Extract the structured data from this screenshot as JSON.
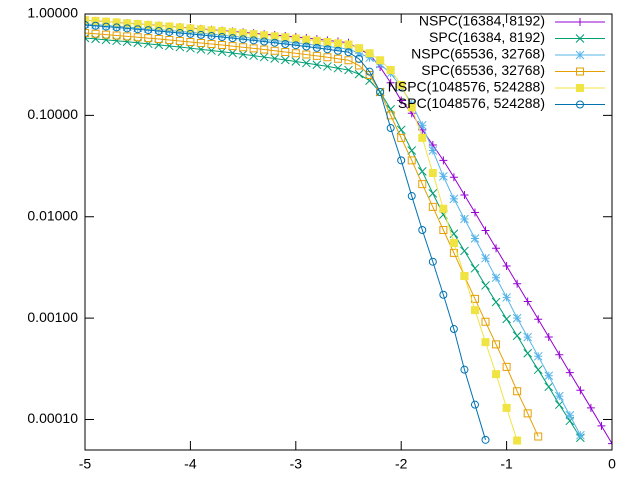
{
  "chart_data": {
    "type": "line",
    "log_y": true,
    "legend": "top-right",
    "x": [
      -5,
      -4.9,
      -4.8,
      -4.7,
      -4.6,
      -4.5,
      -4.4,
      -4.3,
      -4.2,
      -4.1,
      -4,
      -3.9,
      -3.8,
      -3.7,
      -3.6,
      -3.5,
      -3.4,
      -3.3,
      -3.2,
      -3.1,
      -3,
      -2.9,
      -2.8,
      -2.7,
      -2.6,
      -2.5,
      -2.4,
      -2.3,
      -2.2,
      -2.1,
      -2,
      -1.9,
      -1.8,
      -1.7,
      -1.6,
      -1.5,
      -1.4,
      -1.3,
      -1.2,
      -1.1,
      -1,
      -0.9,
      -0.8,
      -0.7,
      -0.6,
      -0.5,
      -0.4,
      -0.3,
      -0.2,
      -0.1,
      0
    ],
    "series": [
      {
        "name": "NSPC(16384, 8192)",
        "color": "#9400d3",
        "marker": "plus",
        "values": [
          0.87,
          0.855,
          0.84,
          0.826,
          0.812,
          0.798,
          0.784,
          0.77,
          0.756,
          0.742,
          0.728,
          0.714,
          0.7,
          0.686,
          0.672,
          0.658,
          0.645,
          0.632,
          0.62,
          0.607,
          0.595,
          0.58,
          0.565,
          0.55,
          0.535,
          0.52,
          0.45,
          0.4,
          0.3,
          0.21,
          0.14,
          0.105,
          0.072,
          0.051,
          0.036,
          0.0245,
          0.0164,
          0.011,
          0.00732,
          0.00489,
          0.00327,
          0.00218,
          0.00146,
          0.000974,
          0.000651,
          0.000435,
          0.00029,
          0.000194,
          0.00013,
          8.66e-05,
          5.78e-05
        ]
      },
      {
        "name": "SPC(16384, 8192)",
        "color": "#009e73",
        "marker": "cross",
        "values": [
          0.58,
          0.568,
          0.556,
          0.544,
          0.532,
          0.52,
          0.508,
          0.496,
          0.484,
          0.472,
          0.46,
          0.448,
          0.436,
          0.424,
          0.412,
          0.4,
          0.388,
          0.376,
          0.364,
          0.352,
          0.34,
          0.328,
          0.316,
          0.304,
          0.292,
          0.28,
          0.255,
          0.22,
          0.17,
          0.115,
          0.072,
          0.045,
          0.028,
          0.017,
          0.0105,
          0.0068,
          0.0046,
          0.0031,
          0.0021,
          0.00144,
          0.00098,
          0.00067,
          0.00045,
          0.00031,
          0.00021,
          0.00014,
          9.7e-05,
          6.6e-05,
          null,
          null,
          null
        ]
      },
      {
        "name": "NSPC(65536, 32768)",
        "color": "#56b4e9",
        "marker": "star",
        "values": [
          0.8,
          0.786,
          0.772,
          0.758,
          0.744,
          0.73,
          0.716,
          0.702,
          0.688,
          0.674,
          0.66,
          0.646,
          0.632,
          0.618,
          0.604,
          0.59,
          0.576,
          0.562,
          0.548,
          0.534,
          0.52,
          0.506,
          0.492,
          0.478,
          0.464,
          0.45,
          0.41,
          0.37,
          0.32,
          0.26,
          0.19,
          0.13,
          0.08,
          0.045,
          0.025,
          0.015,
          0.0095,
          0.0061,
          0.0039,
          0.0025,
          0.0016,
          0.001,
          0.00065,
          0.00042,
          0.00027,
          0.00017,
          0.00011,
          7e-05,
          null,
          null,
          null
        ]
      },
      {
        "name": "SPC(65536, 32768)",
        "color": "#e69f00",
        "marker": "square",
        "values": [
          0.65,
          0.638,
          0.626,
          0.614,
          0.602,
          0.59,
          0.578,
          0.566,
          0.554,
          0.542,
          0.53,
          0.518,
          0.506,
          0.494,
          0.482,
          0.47,
          0.458,
          0.446,
          0.434,
          0.422,
          0.41,
          0.398,
          0.386,
          0.374,
          0.362,
          0.35,
          0.31,
          0.25,
          0.17,
          0.1,
          0.06,
          0.036,
          0.021,
          0.0125,
          0.0074,
          0.0044,
          0.0026,
          0.00155,
          0.00092,
          0.00055,
          0.00033,
          0.00019,
          0.000115,
          6.8e-05,
          null,
          null,
          null,
          null,
          null,
          null,
          null
        ]
      },
      {
        "name": "NSPC(1048576, 524288)",
        "color": "#f0e442",
        "marker": "filled-square",
        "values": [
          0.87,
          0.855,
          0.84,
          0.826,
          0.811,
          0.796,
          0.781,
          0.766,
          0.752,
          0.737,
          0.722,
          0.707,
          0.692,
          0.678,
          0.663,
          0.648,
          0.633,
          0.618,
          0.604,
          0.589,
          0.574,
          0.559,
          0.544,
          0.53,
          0.515,
          0.5,
          0.46,
          0.41,
          0.35,
          0.28,
          0.2,
          0.12,
          0.06,
          0.027,
          0.012,
          0.0055,
          0.0026,
          0.0012,
          0.00058,
          0.00028,
          0.00013,
          6.2e-05,
          null,
          null,
          null,
          null,
          null,
          null,
          null,
          null,
          null
        ]
      },
      {
        "name": "SPC(1048576, 524288)",
        "color": "#0072b2",
        "marker": "circle",
        "values": [
          0.78,
          0.766,
          0.751,
          0.737,
          0.722,
          0.708,
          0.694,
          0.679,
          0.665,
          0.65,
          0.636,
          0.622,
          0.607,
          0.593,
          0.578,
          0.564,
          0.55,
          0.535,
          0.521,
          0.506,
          0.492,
          0.478,
          0.463,
          0.449,
          0.434,
          0.42,
          0.36,
          0.27,
          0.17,
          0.075,
          0.036,
          0.016,
          0.0074,
          0.0036,
          0.0017,
          0.00078,
          0.00031,
          0.00014,
          6.3e-05,
          null,
          null,
          null,
          null,
          null,
          null,
          null,
          null,
          null,
          null,
          null,
          null
        ]
      }
    ],
    "xlim": [
      -5,
      0
    ],
    "xticks": [
      -5,
      -4,
      -3,
      -2,
      -1,
      0
    ],
    "ylim": [
      5e-05,
      1
    ],
    "yticks": [
      {
        "value": 0.0001,
        "label": "0.00010"
      },
      {
        "value": 0.001,
        "label": "0.00100"
      },
      {
        "value": 0.01,
        "label": "0.01000"
      },
      {
        "value": 0.1,
        "label": "0.10000"
      },
      {
        "value": 1,
        "label": "1.00000"
      }
    ]
  }
}
